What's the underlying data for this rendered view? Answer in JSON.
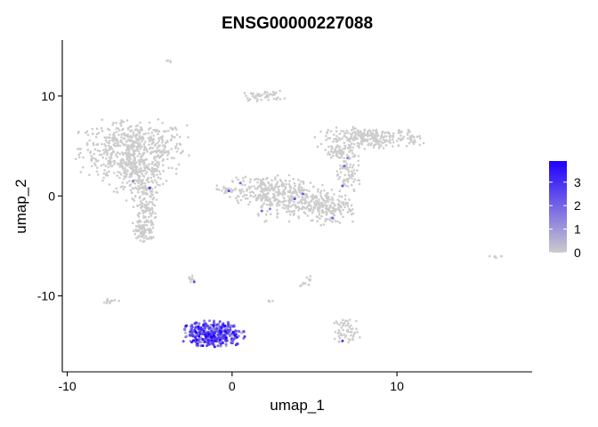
{
  "chart_data": {
    "type": "scatter",
    "title": "ENSG00000227088",
    "xlabel": "umap_1",
    "ylabel": "umap_2",
    "xlim": [
      -10.3,
      18.2
    ],
    "ylim": [
      -17.6,
      15.6
    ],
    "xticks": [
      {
        "value": -10,
        "label": "-10"
      },
      {
        "value": 0,
        "label": "0"
      },
      {
        "value": 10,
        "label": "10"
      }
    ],
    "yticks": [
      {
        "value": -10,
        "label": "-10"
      },
      {
        "value": 0,
        "label": "0"
      },
      {
        "value": 10,
        "label": "10"
      }
    ],
    "grid": false,
    "legend": {
      "type": "colorbar",
      "placement": "right",
      "min": 0,
      "max": 3.9,
      "low_color": "#cccccc",
      "high_color": "#1f00ff",
      "ticks": [
        {
          "value": 0,
          "label": "0"
        },
        {
          "value": 1,
          "label": "1"
        },
        {
          "value": 2,
          "label": "2"
        },
        {
          "value": 3,
          "label": "3"
        }
      ]
    },
    "clusters": [
      {
        "id": "left-arm-top",
        "cx": -6.0,
        "cy": 4.8,
        "sx": 1.6,
        "sy": 1.3,
        "n": 520,
        "expr": 0
      },
      {
        "id": "left-arm-mid",
        "cx": -5.9,
        "cy": 2.2,
        "sx": 0.9,
        "sy": 1.1,
        "n": 180,
        "expr": 0
      },
      {
        "id": "left-arm-low",
        "cx": -5.3,
        "cy": -1.0,
        "sx": 0.35,
        "sy": 1.7,
        "n": 160,
        "expr": 0
      },
      {
        "id": "left-arm-tip",
        "cx": -5.4,
        "cy": -3.6,
        "sx": 0.3,
        "sy": 0.6,
        "n": 50,
        "expr": 0
      },
      {
        "id": "top-small",
        "cx": 1.9,
        "cy": 10.0,
        "sx": 0.6,
        "sy": 0.25,
        "n": 45,
        "expr": 0
      },
      {
        "id": "top-dot",
        "cx": -3.8,
        "cy": 13.5,
        "sx": 0.08,
        "sy": 0.08,
        "n": 4,
        "expr": 0
      },
      {
        "id": "right-upper",
        "cx": 8.4,
        "cy": 5.8,
        "sx": 1.5,
        "sy": 0.5,
        "n": 260,
        "expr": 0
      },
      {
        "id": "right-upper-tail",
        "cx": 6.6,
        "cy": 4.4,
        "sx": 0.5,
        "sy": 0.4,
        "n": 60,
        "expr": 0
      },
      {
        "id": "right-drop",
        "cx": 7.0,
        "cy": 2.0,
        "sx": 0.4,
        "sy": 1.1,
        "n": 70,
        "expr": 0
      },
      {
        "id": "center-left",
        "cx": 2.0,
        "cy": 0.6,
        "sx": 1.1,
        "sy": 0.7,
        "n": 200,
        "expr": 0
      },
      {
        "id": "center-mid",
        "cx": 4.2,
        "cy": -0.6,
        "sx": 1.3,
        "sy": 0.9,
        "n": 240,
        "expr": 0
      },
      {
        "id": "center-right",
        "cx": 6.1,
        "cy": -1.2,
        "sx": 0.7,
        "sy": 0.8,
        "n": 110,
        "expr": 0
      },
      {
        "id": "center-small",
        "cx": -0.5,
        "cy": 0.6,
        "sx": 0.3,
        "sy": 0.2,
        "n": 20,
        "expr": 0
      },
      {
        "id": "mini-a",
        "cx": -2.5,
        "cy": -8.3,
        "sx": 0.15,
        "sy": 0.2,
        "n": 10,
        "expr": 0
      },
      {
        "id": "mini-b",
        "cx": -7.5,
        "cy": -10.5,
        "sx": 0.3,
        "sy": 0.15,
        "n": 14,
        "expr": 0
      },
      {
        "id": "mini-c",
        "cx": 4.5,
        "cy": -8.5,
        "sx": 0.2,
        "sy": 0.3,
        "n": 12,
        "expr": 0
      },
      {
        "id": "mini-d",
        "cx": 2.3,
        "cy": -10.5,
        "sx": 0.1,
        "sy": 0.1,
        "n": 4,
        "expr": 0
      },
      {
        "id": "mini-e",
        "cx": 16.0,
        "cy": -6.1,
        "sx": 0.18,
        "sy": 0.1,
        "n": 6,
        "expr": 0
      },
      {
        "id": "bottom-right",
        "cx": 6.9,
        "cy": -13.5,
        "sx": 0.4,
        "sy": 0.6,
        "n": 55,
        "expr": 0
      },
      {
        "id": "bottom-left-expressing",
        "cx": -1.2,
        "cy": -13.8,
        "sx": 0.9,
        "sy": 0.6,
        "n": 380,
        "expr": 2.0
      }
    ],
    "highlighted_points": [
      {
        "x": -5.0,
        "y": 0.8,
        "value": 3.0
      },
      {
        "x": -6.0,
        "y": 1.5,
        "value": 1.5
      },
      {
        "x": -0.2,
        "y": 0.5,
        "value": 2.5
      },
      {
        "x": 0.5,
        "y": 1.3,
        "value": 2.0
      },
      {
        "x": 1.8,
        "y": -1.5,
        "value": 2.0
      },
      {
        "x": 2.3,
        "y": -1.3,
        "value": 1.5
      },
      {
        "x": 3.8,
        "y": -0.3,
        "value": 2.5
      },
      {
        "x": 4.3,
        "y": 0.2,
        "value": 2.0
      },
      {
        "x": 6.1,
        "y": -2.2,
        "value": 2.0
      },
      {
        "x": 6.7,
        "y": 1.0,
        "value": 2.5
      },
      {
        "x": 6.8,
        "y": 3.0,
        "value": 2.0
      },
      {
        "x": 7.0,
        "y": 3.8,
        "value": 1.5
      },
      {
        "x": -2.3,
        "y": -8.6,
        "value": 2.5
      },
      {
        "x": 6.7,
        "y": -14.5,
        "value": 3.0
      }
    ]
  }
}
